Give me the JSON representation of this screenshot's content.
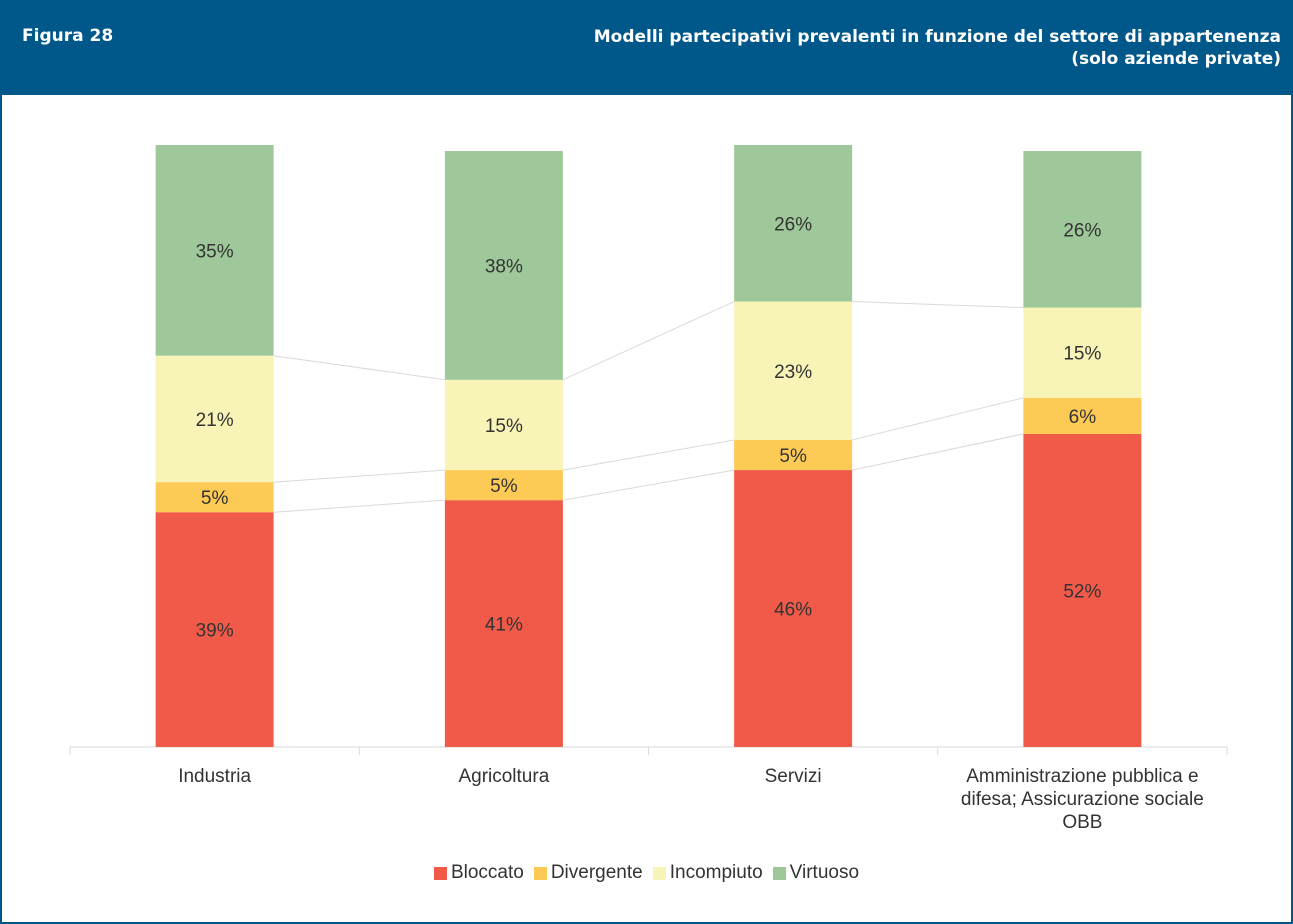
{
  "figure_label": "Figura 28",
  "chart_data": {
    "type": "bar",
    "stacked": true,
    "title": "Modelli partecipativi prevalenti in funzione del settore di appartenenza",
    "subtitle": "(solo aziende private)",
    "categories": [
      "Industria",
      "Agricoltura",
      "Servizi",
      "Amministrazione pubblica e difesa; Assicurazione sociale OBB"
    ],
    "series": [
      {
        "name": "Bloccato",
        "color": "#f15a48",
        "values": [
          39,
          41,
          46,
          52
        ],
        "value_labels": [
          "39%",
          "41%",
          "46%",
          "52%"
        ]
      },
      {
        "name": "Divergente",
        "color": "#fdcb55",
        "values": [
          5,
          5,
          5,
          6
        ],
        "value_labels": [
          "5%",
          "5%",
          "5%",
          "6%"
        ]
      },
      {
        "name": "Incompiuto",
        "color": "#f8f3b6",
        "values": [
          21,
          15,
          23,
          15
        ],
        "value_labels": [
          "21%",
          "15%",
          "23%",
          "15%"
        ]
      },
      {
        "name": "Virtuoso",
        "color": "#9fc89a",
        "values": [
          35,
          38,
          26,
          26
        ],
        "value_labels": [
          "35%",
          "38%",
          "26%",
          "26%"
        ]
      }
    ],
    "ylim": [
      0,
      100
    ],
    "legend": "bottom"
  }
}
